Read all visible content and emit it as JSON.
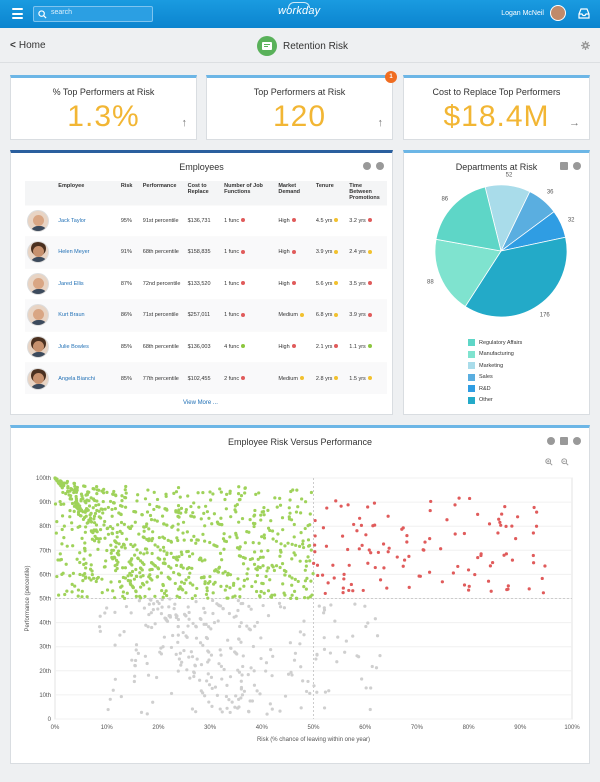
{
  "topbar": {
    "search_placeholder": "search",
    "logo": "workday",
    "user_name": "Logan McNeil"
  },
  "header": {
    "back_label": "Home",
    "title": "Retention Risk"
  },
  "kpis": [
    {
      "label": "% Top Performers at Risk",
      "value": "1.3%",
      "arrow": "↑"
    },
    {
      "label": "Top Performers at Risk",
      "value": "120",
      "arrow": "↑",
      "badge": "1"
    },
    {
      "label": "Cost to Replace Top Performers",
      "value": "$18.4M",
      "arrow": "→"
    }
  ],
  "employees": {
    "title": "Employees",
    "columns": [
      "Employee",
      "Risk",
      "Performance",
      "Cost to Replace",
      "Number of Job Functions",
      "Market Demand",
      "Tenure",
      "Time Between Promotions"
    ],
    "rows": [
      {
        "name": "Jack Taylor",
        "risk": "95%",
        "performance": "91st percentile",
        "cost": "$136,731",
        "funcs": "1 func",
        "funcs_color": "#e05b5b",
        "demand": "High",
        "demand_color": "#e05b5b",
        "tenure": "4.5 yrs",
        "tenure_color": "#f2c12e",
        "promo": "3.2 yrs",
        "promo_color": "#e05b5b",
        "female": false
      },
      {
        "name": "Helen Meyer",
        "risk": "91%",
        "performance": "68th percentile",
        "cost": "$158,835",
        "funcs": "1 func",
        "funcs_color": "#e05b5b",
        "demand": "High",
        "demand_color": "#e05b5b",
        "tenure": "3.9 yrs",
        "tenure_color": "#f2c12e",
        "promo": "2.4 yrs",
        "promo_color": "#f2c12e",
        "female": true
      },
      {
        "name": "Jared Ellis",
        "risk": "87%",
        "performance": "72nd percentile",
        "cost": "$133,520",
        "funcs": "1 func",
        "funcs_color": "#e05b5b",
        "demand": "High",
        "demand_color": "#e05b5b",
        "tenure": "5.6 yrs",
        "tenure_color": "#f2c12e",
        "promo": "3.5 yrs",
        "promo_color": "#e05b5b",
        "female": false
      },
      {
        "name": "Kurt Braun",
        "risk": "86%",
        "performance": "71st percentile",
        "cost": "$257,011",
        "funcs": "1 func",
        "funcs_color": "#e05b5b",
        "demand": "Medium",
        "demand_color": "#f2c12e",
        "tenure": "6.8 yrs",
        "tenure_color": "#f2c12e",
        "promo": "3.9 yrs",
        "promo_color": "#e05b5b",
        "female": false
      },
      {
        "name": "Julie Bowles",
        "risk": "85%",
        "performance": "68th percentile",
        "cost": "$136,003",
        "funcs": "4 func",
        "funcs_color": "#8cc63e",
        "demand": "High",
        "demand_color": "#e05b5b",
        "tenure": "2.1 yrs",
        "tenure_color": "#e05b5b",
        "promo": "1.1 yrs",
        "promo_color": "#8cc63e",
        "female": true
      },
      {
        "name": "Angela Bianchi",
        "risk": "85%",
        "performance": "77th percentile",
        "cost": "$102,455",
        "funcs": "2 func",
        "funcs_color": "#e05b5b",
        "demand": "Medium",
        "demand_color": "#f2c12e",
        "tenure": "2.8 yrs",
        "tenure_color": "#f2c12e",
        "promo": "1.5 yrs",
        "promo_color": "#f2c12e",
        "female": true
      }
    ],
    "view_more": "View More ..."
  },
  "departments": {
    "title": "Departments at Risk",
    "chart_data": {
      "type": "pie",
      "labels": [
        "Regulatory Affairs",
        "Manufacturing",
        "Marketing",
        "Sales",
        "R&D",
        "Other"
      ],
      "values": [
        86,
        88,
        52,
        36,
        32,
        176
      ],
      "colors": [
        "#5ed6c7",
        "#7fe3cf",
        "#a9dcea",
        "#5aaee0",
        "#2f9de3",
        "#23aac8"
      ]
    }
  },
  "scatter": {
    "title": "Employee Risk Versus Performance",
    "chart_data": {
      "type": "scatter",
      "xlabel": "Risk (% chance of leaving within one year)",
      "ylabel": "Performance (percentile)",
      "xlim": [
        0,
        100
      ],
      "ylim": [
        0,
        100
      ],
      "xticks": [
        "0%",
        "10%",
        "20%",
        "30%",
        "40%",
        "50%",
        "60%",
        "70%",
        "80%",
        "90%",
        "100%"
      ],
      "yticks": [
        "0",
        "10th",
        "20th",
        "30th",
        "40th",
        "50th",
        "60th",
        "70th",
        "80th",
        "90th",
        "100th"
      ],
      "thresholds": {
        "x": 50,
        "y": 50
      },
      "series_colors": {
        "top_low_risk": "#9fd25a",
        "top_high_risk": "#e05b5b",
        "low_performance": "#cfcfcf"
      }
    }
  }
}
